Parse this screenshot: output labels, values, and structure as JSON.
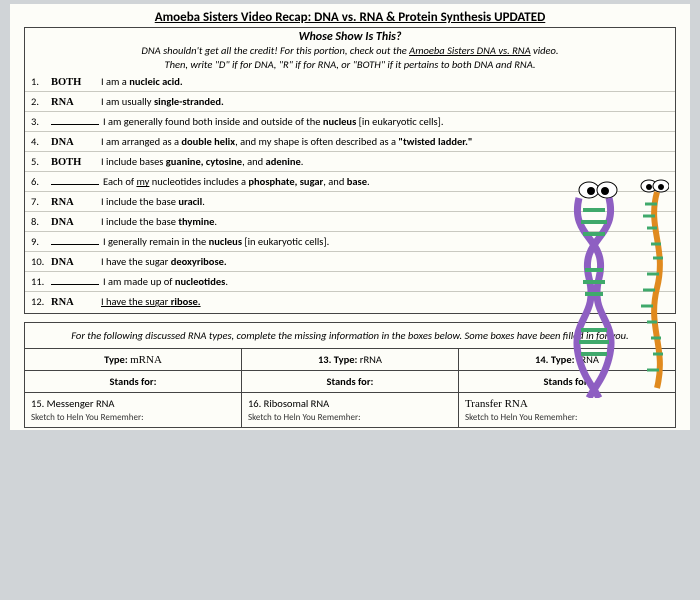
{
  "title": "Amoeba Sisters Video Recap: DNA vs. RNA & Protein Synthesis UPDATED",
  "section1": {
    "header": "Whose Show Is This?",
    "sub1": "DNA shouldn't get all the credit! For this portion, check out the <u>Amoeba Sisters DNA vs. RNA</u> video.",
    "sub2": "Then, write \"D\" if for DNA, \"R\" if for RNA, or \"BOTH\" if it pertains to both DNA and RNA.",
    "rows": [
      {
        "n": "1.",
        "a": "BOTH",
        "s": "I am a <b>nucleic acid.</b>"
      },
      {
        "n": "2.",
        "a": "RNA",
        "s": "I am usually <b>single-stranded.</b>"
      },
      {
        "n": "3.",
        "a": "",
        "s": "I am generally found both inside and outside of the <b>nucleus</b> [in eukaryotic cells]."
      },
      {
        "n": "4.",
        "a": "DNA",
        "s": "I am arranged as a <b>double helix</b>, and my shape is often described as a <b>\"twisted ladder.\"</b>"
      },
      {
        "n": "5.",
        "a": "BOTH",
        "s": "I include bases <b>guanine, cytosine</b>, and <b>adenine</b>."
      },
      {
        "n": "6.",
        "a": "",
        "s": "Each of <u>my</u> nucleotides includes a <b>phosphate, sugar</b>, and <b>base</b>."
      },
      {
        "n": "7.",
        "a": "RNA",
        "s": "I include the base <b>uracil</b>."
      },
      {
        "n": "8.",
        "a": "DNA",
        "s": "I include the base <b>thymine</b>."
      },
      {
        "n": "9.",
        "a": "",
        "s": "I generally remain in the <b>nucleus</b> [in eukaryotic cells]."
      },
      {
        "n": "10.",
        "a": "DNA",
        "s": "I have the sugar <b>deoxyribose.</b>"
      },
      {
        "n": "11.",
        "a": "",
        "s": "I am made up of <b>nucleotides</b>."
      },
      {
        "n": "12.",
        "a": "RNA",
        "s": "<u>I have the sugar <b>ribose.</b></u>"
      }
    ]
  },
  "section2": {
    "header": "For the following discussed RNA types, complete the missing information in the boxes below. Some boxes have been filled in for you.",
    "cols": [
      {
        "typeLabel": "Type:",
        "typeVal": "mRNA",
        "typeHand": true,
        "standsLabel": "Stands for:",
        "standsVal": "15. Messenger RNA",
        "standsHand": false
      },
      {
        "typeLabel": "13. Type:",
        "typeVal": "rRNA",
        "typeHand": false,
        "standsLabel": "Stands for:",
        "standsVal": "16. Ribosomal RNA",
        "standsHand": false
      },
      {
        "typeLabel": "14. Type:",
        "typeVal": "tRNA",
        "typeHand": false,
        "standsLabel": "Stands for:",
        "standsVal": "Transfer RNA",
        "standsHand": true
      }
    ],
    "cutoff": "Sketch to Heln You Rememher:"
  },
  "illus": {
    "dnaColor": "#8e5fc2",
    "rnaColor": "#e08a1e",
    "rungColor": "#3fa96b",
    "eyeWhite": "#ffffff",
    "eyeBlack": "#000000"
  }
}
